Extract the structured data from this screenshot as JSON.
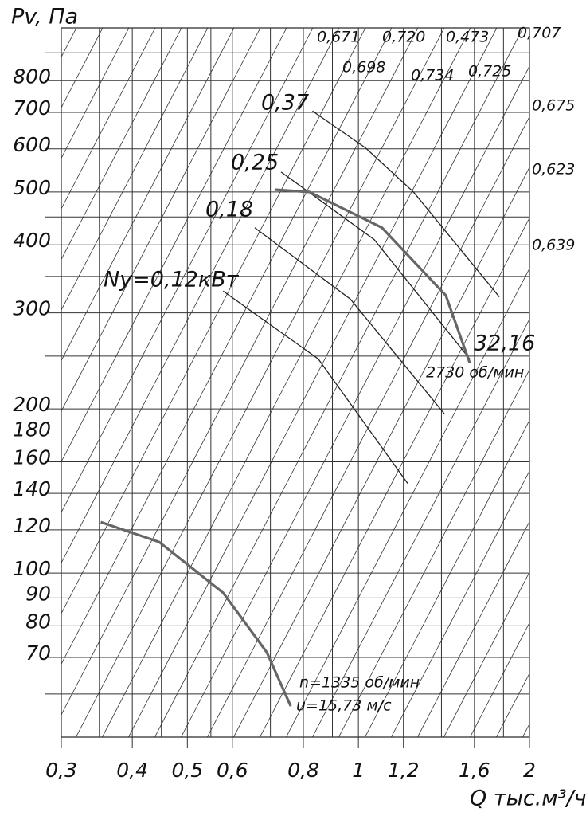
{
  "chart_data": {
    "type": "line",
    "x_label": "Q тыс.м³/ч",
    "y_label": "Pv, Па",
    "log_x": true,
    "log_y": true,
    "grid": true,
    "xlim": [
      0.3,
      2
    ],
    "ylim": [
      50,
      1000
    ],
    "xticks": [
      {
        "value": 0.3,
        "label": "0,3"
      },
      {
        "value": 0.4,
        "label": "0,4"
      },
      {
        "value": 0.5,
        "label": "0,5"
      },
      {
        "value": 0.6,
        "label": "0,6"
      },
      {
        "value": 0.8,
        "label": "0,8"
      },
      1,
      {
        "value": 1.2,
        "label": "1,2"
      },
      {
        "value": 1.6,
        "label": "1,6"
      },
      2
    ],
    "xticks_minor": [
      0.35,
      0.45,
      0.55,
      0.7,
      0.9,
      1.4,
      1.8
    ],
    "yticks": [
      70,
      80,
      90,
      100,
      120,
      140,
      160,
      180,
      200,
      300,
      400,
      500,
      600,
      700,
      800
    ],
    "yticks_minor": [
      60,
      250,
      350,
      450,
      900
    ],
    "series": [
      {
        "name": "0,37",
        "color": "#222",
        "width": 1.3,
        "x": [
          0.83,
          1.03,
          1.25,
          1.77
        ],
        "values": [
          704,
          602,
          500,
          321
        ]
      },
      {
        "name": "0,25",
        "color": "#222",
        "width": 1.3,
        "x": [
          0.731,
          1.066,
          1.57
        ],
        "values": [
          544,
          409,
          247
        ]
      },
      {
        "name": "0,18",
        "color": "#222",
        "width": 1.3,
        "x": [
          0.657,
          0.968,
          1.416
        ],
        "values": [
          430,
          318,
          196
        ]
      },
      {
        "name": "Ny=0,12кВт",
        "color": "#222",
        "width": 1.3,
        "x": [
          0.578,
          0.85,
          1.221
        ],
        "values": [
          329,
          247,
          146
        ]
      },
      {
        "name": "2730 об/мин",
        "color": "#666",
        "width": 3.2,
        "x": [
          0.712,
          0.82,
          1.1,
          1.425,
          1.57
        ],
        "values": [
          505,
          500,
          430,
          323,
          243
        ]
      },
      {
        "name": "n=1335 об/мин",
        "color": "#666",
        "width": 3.2,
        "x": [
          0.352,
          0.446,
          0.578,
          0.69,
          0.76
        ],
        "values": [
          124,
          114,
          92,
          71.5,
          57
        ]
      }
    ],
    "annotations": [
      "32,16",
      "u=15,73 м/с",
      "0,671",
      "0,720",
      "0,473",
      "0,707",
      "0,698",
      "0,734",
      "0,725",
      "0,675",
      "0,623",
      "0,639"
    ]
  }
}
